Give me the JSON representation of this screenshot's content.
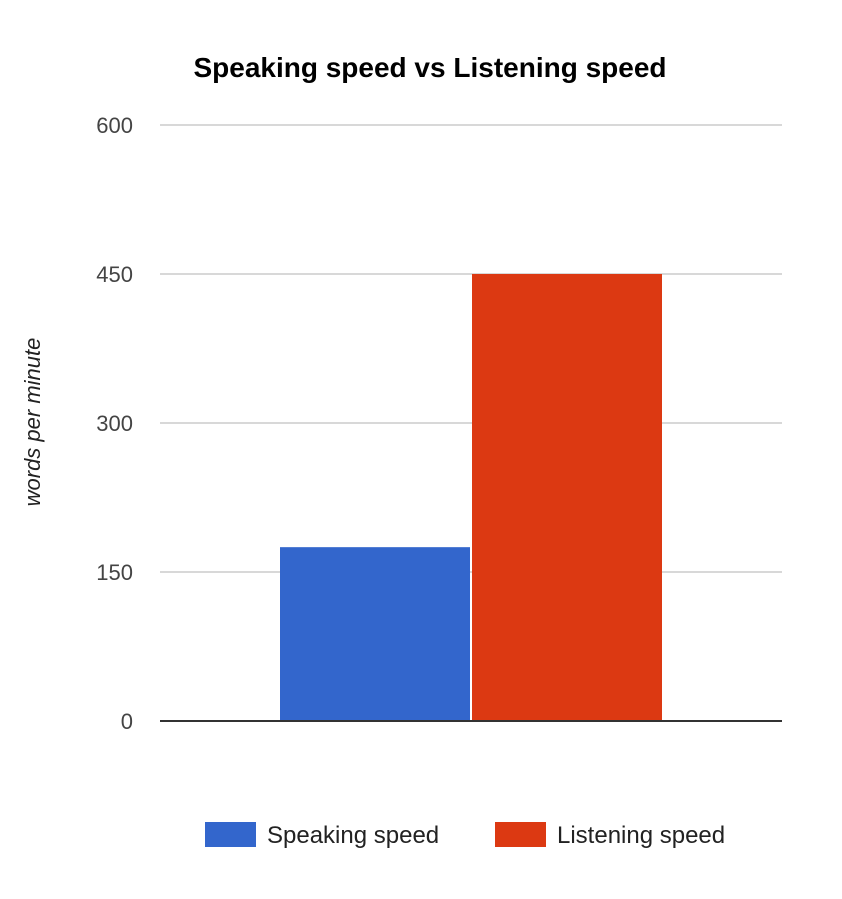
{
  "chart_data": {
    "type": "bar",
    "title": "Speaking speed vs Listening speed",
    "ylabel": "words per minute",
    "xlabel": "",
    "categories": [
      ""
    ],
    "series": [
      {
        "name": "Speaking speed",
        "values": [
          175
        ],
        "color": "#3366cc"
      },
      {
        "name": "Listening speed",
        "values": [
          450
        ],
        "color": "#dc3912"
      }
    ],
    "ylim": [
      0,
      600
    ],
    "yticks": [
      0,
      150,
      300,
      450,
      600
    ],
    "grid": true,
    "legend_position": "bottom"
  }
}
